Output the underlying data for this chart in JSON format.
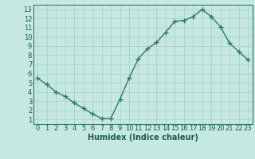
{
  "x": [
    0,
    1,
    2,
    3,
    4,
    5,
    6,
    7,
    8,
    9,
    10,
    11,
    12,
    13,
    14,
    15,
    16,
    17,
    18,
    19,
    20,
    21,
    22,
    23
  ],
  "y": [
    5.5,
    4.8,
    4.0,
    3.5,
    2.8,
    2.2,
    1.6,
    1.1,
    1.1,
    3.2,
    5.5,
    7.6,
    8.7,
    9.4,
    10.5,
    11.7,
    11.8,
    12.2,
    13.0,
    12.2,
    11.1,
    9.3,
    8.4,
    7.5
  ],
  "line_color": "#2d7a6e",
  "marker": "+",
  "marker_size": 4,
  "xlabel": "Humidex (Indice chaleur)",
  "xlim": [
    -0.5,
    23.5
  ],
  "ylim": [
    0.5,
    13.5
  ],
  "yticks": [
    1,
    2,
    3,
    4,
    5,
    6,
    7,
    8,
    9,
    10,
    11,
    12,
    13
  ],
  "xticks": [
    0,
    1,
    2,
    3,
    4,
    5,
    6,
    7,
    8,
    9,
    10,
    11,
    12,
    13,
    14,
    15,
    16,
    17,
    18,
    19,
    20,
    21,
    22,
    23
  ],
  "bg_color": "#c5e8e0",
  "grid_color": "#a8cec8",
  "line_color2": "#2d7a6e",
  "tick_label_color": "#1a5c52",
  "xlabel_color": "#1a5c52",
  "xlabel_fontsize": 7,
  "tick_fontsize": 6,
  "linewidth": 1.0
}
